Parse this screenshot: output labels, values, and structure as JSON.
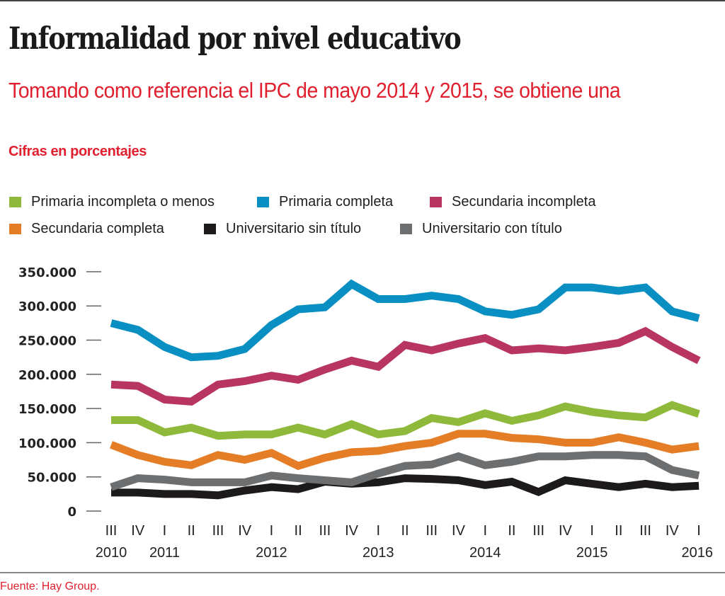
{
  "header": {
    "title": "Informalidad por nivel educativo",
    "subtitle": "Tomando como referencia el IPC de mayo 2014 y 2015, se obtiene una",
    "units": "Cifras en porcentajes"
  },
  "footer": {
    "source": "Fuente: Hay Group."
  },
  "chart_data": {
    "type": "line",
    "title": "Informalidad por nivel educativo",
    "subtitle": "Tomando como referencia el IPC de mayo 2014 y 2015, se obtiene una",
    "xlabel": "",
    "ylabel": "Cifras en porcentajes",
    "ylim": [
      0,
      350000
    ],
    "yticks": [
      0,
      50000,
      100000,
      150000,
      200000,
      250000,
      300000,
      350000
    ],
    "ytick_labels": [
      "0",
      "50.000",
      "100.000",
      "150.000",
      "200.000",
      "250.000",
      "300.000",
      "350.000"
    ],
    "x": [
      "III 2010",
      "IV 2010",
      "I 2011",
      "II 2011",
      "III 2011",
      "IV 2011",
      "I 2012",
      "II 2012",
      "III 2012",
      "IV 2012",
      "I 2013",
      "II 2013",
      "III 2013",
      "IV 2013",
      "I 2014",
      "II 2014",
      "III 2014",
      "IV 2014",
      "I 2015",
      "II 2015",
      "III 2015",
      "IV 2015",
      "I 2016"
    ],
    "quarter_labels": [
      "III",
      "IV",
      "I",
      "II",
      "III",
      "IV",
      "I",
      "II",
      "III",
      "IV",
      "I",
      "II",
      "III",
      "IV",
      "I",
      "II",
      "III",
      "IV",
      "I",
      "II",
      "III",
      "IV",
      "I"
    ],
    "year_labels": [
      {
        "label": "2010",
        "index": 0
      },
      {
        "label": "2011",
        "index": 2
      },
      {
        "label": "2012",
        "index": 6
      },
      {
        "label": "2013",
        "index": 10
      },
      {
        "label": "2014",
        "index": 14
      },
      {
        "label": "2015",
        "index": 18
      },
      {
        "label": "2016",
        "index": 22
      }
    ],
    "grid": false,
    "legend_position": "top-left",
    "series": [
      {
        "name": "Primaria incompleta o menos",
        "color": "#8fb93a",
        "values": [
          133000,
          133000,
          115000,
          122000,
          110000,
          112000,
          112000,
          122000,
          112000,
          127000,
          112000,
          117000,
          136000,
          130000,
          143000,
          132000,
          140000,
          153000,
          145000,
          140000,
          137000,
          155000,
          142000
        ]
      },
      {
        "name": "Primaria completa",
        "color": "#0a8fc2",
        "values": [
          275000,
          265000,
          240000,
          225000,
          227000,
          237000,
          272000,
          295000,
          298000,
          332000,
          310000,
          310000,
          315000,
          310000,
          292000,
          287000,
          295000,
          327000,
          327000,
          322000,
          327000,
          292000,
          282000
        ]
      },
      {
        "name": "Secundaria incompleta",
        "color": "#b83561",
        "values": [
          185000,
          183000,
          163000,
          160000,
          185000,
          190000,
          198000,
          192000,
          207000,
          220000,
          211000,
          243000,
          235000,
          245000,
          253000,
          235000,
          238000,
          235000,
          240000,
          246000,
          263000,
          240000,
          220000
        ]
      },
      {
        "name": "Secundaria completa",
        "color": "#e57d26",
        "values": [
          97000,
          82000,
          72000,
          67000,
          82000,
          75000,
          85000,
          66000,
          78000,
          86000,
          88000,
          95000,
          100000,
          113000,
          113000,
          107000,
          105000,
          100000,
          100000,
          108000,
          100000,
          90000,
          95000
        ]
      },
      {
        "name": "Universitario sin título",
        "color": "#1c1a1b",
        "values": [
          27000,
          27000,
          25000,
          25000,
          23000,
          30000,
          35000,
          32000,
          43000,
          40000,
          42000,
          48000,
          47000,
          45000,
          38000,
          43000,
          28000,
          45000,
          40000,
          35000,
          40000,
          35000,
          37000
        ]
      },
      {
        "name": "Universitario con título",
        "color": "#6d6e70",
        "values": [
          35000,
          48000,
          46000,
          42000,
          42000,
          42000,
          52000,
          48000,
          45000,
          42000,
          55000,
          66000,
          68000,
          80000,
          67000,
          72000,
          80000,
          80000,
          82000,
          82000,
          80000,
          60000,
          52000
        ]
      }
    ]
  }
}
